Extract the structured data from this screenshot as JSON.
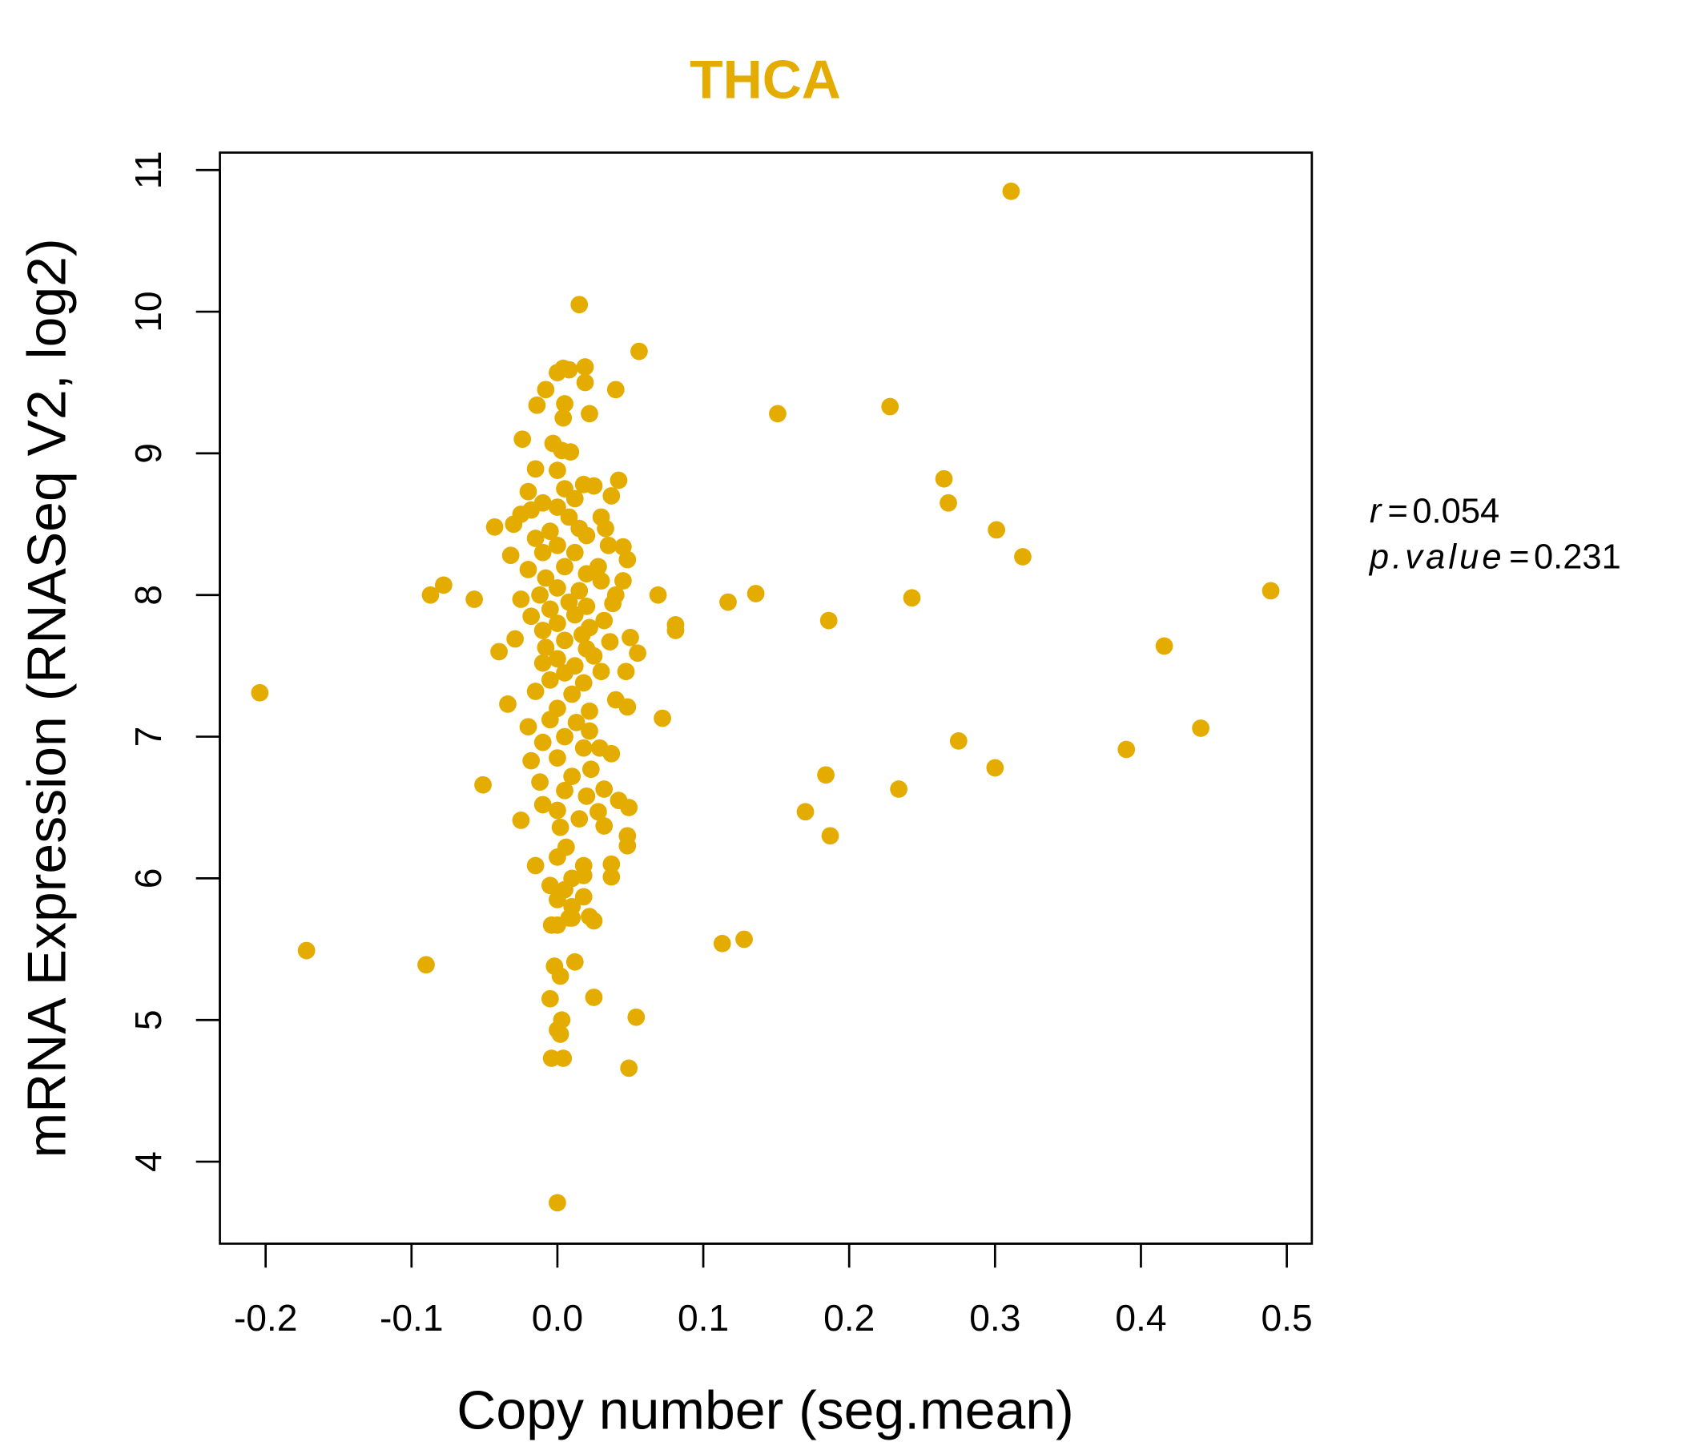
{
  "chart_data": {
    "type": "scatter",
    "title": "THCA",
    "xlabel": "Copy number (seg.mean)",
    "ylabel": "mRNA Expression (RNASeq V2, log2)",
    "xlim": [
      -0.23,
      0.52
    ],
    "ylim": [
      3.45,
      11.13
    ],
    "xticks": [
      -0.2,
      -0.1,
      0.0,
      0.1,
      0.2,
      0.3,
      0.4,
      0.5
    ],
    "xtick_labels": [
      "-0.2",
      "-0.1",
      "0.0",
      "0.1",
      "0.2",
      "0.3",
      "0.4",
      "0.5"
    ],
    "yticks": [
      4,
      5,
      6,
      7,
      8,
      9,
      10,
      11
    ],
    "ytick_labels": [
      "4",
      "5",
      "6",
      "7",
      "8",
      "9",
      "10",
      "11"
    ],
    "grid": false,
    "color": "#E5AC00",
    "annotations": {
      "r_label": "r",
      "r_value": "0.054",
      "p_label": "p.value",
      "p_value": "0.231"
    },
    "points": [
      [
        -0.204,
        7.31
      ],
      [
        -0.172,
        5.49
      ],
      [
        -0.09,
        5.39
      ],
      [
        -0.087,
        8.0
      ],
      [
        -0.078,
        8.07
      ],
      [
        -0.057,
        7.97
      ],
      [
        -0.051,
        6.66
      ],
      [
        -0.04,
        7.6
      ],
      [
        -0.034,
        7.23
      ],
      [
        -0.043,
        8.48
      ],
      [
        -0.029,
        7.69
      ],
      [
        0.015,
        10.05
      ],
      [
        0.056,
        9.72
      ],
      [
        0.069,
        8.0
      ],
      [
        0.072,
        7.13
      ],
      [
        0.081,
        7.79
      ],
      [
        0.081,
        7.75
      ],
      [
        0.113,
        5.54
      ],
      [
        0.128,
        5.57
      ],
      [
        0.117,
        7.95
      ],
      [
        0.136,
        8.01
      ],
      [
        0.151,
        9.28
      ],
      [
        0.17,
        6.47
      ],
      [
        0.184,
        6.73
      ],
      [
        0.186,
        7.82
      ],
      [
        0.187,
        6.3
      ],
      [
        0.228,
        9.33
      ],
      [
        0.234,
        6.63
      ],
      [
        0.243,
        7.98
      ],
      [
        0.265,
        8.82
      ],
      [
        0.268,
        8.65
      ],
      [
        0.275,
        6.97
      ],
      [
        0.3,
        6.78
      ],
      [
        0.301,
        8.46
      ],
      [
        0.311,
        10.85
      ],
      [
        0.319,
        8.27
      ],
      [
        0.39,
        6.91
      ],
      [
        0.416,
        7.64
      ],
      [
        0.441,
        7.06
      ],
      [
        0.489,
        8.03
      ],
      [
        0.0,
        3.71
      ],
      [
        0.049,
        4.66
      ],
      [
        0.054,
        5.02
      ],
      [
        0.025,
        5.16
      ],
      [
        -0.005,
        5.15
      ],
      [
        -0.004,
        4.73
      ],
      [
        0.004,
        4.73
      ],
      [
        0.0,
        4.93
      ],
      [
        0.003,
        5.0
      ],
      [
        0.002,
        4.9
      ],
      [
        -0.002,
        5.38
      ],
      [
        0.002,
        5.31
      ],
      [
        0.012,
        5.41
      ],
      [
        -0.004,
        5.67
      ],
      [
        0.0,
        5.67
      ],
      [
        0.025,
        5.7
      ],
      [
        0.01,
        5.72
      ],
      [
        -0.015,
        6.09
      ],
      [
        0.0,
        9.57
      ],
      [
        0.004,
        9.6
      ],
      [
        0.008,
        9.59
      ],
      [
        0.019,
        9.61
      ],
      [
        0.019,
        9.5
      ],
      [
        -0.008,
        9.45
      ],
      [
        0.04,
        9.45
      ],
      [
        -0.014,
        9.34
      ],
      [
        0.005,
        9.35
      ],
      [
        0.004,
        9.25
      ],
      [
        0.022,
        9.28
      ],
      [
        -0.024,
        9.1
      ],
      [
        -0.003,
        9.07
      ],
      [
        0.009,
        9.01
      ],
      [
        0.003,
        9.02
      ],
      [
        -0.015,
        8.89
      ],
      [
        0.0,
        8.88
      ],
      [
        0.042,
        8.81
      ],
      [
        0.018,
        8.78
      ],
      [
        0.025,
        8.77
      ],
      [
        -0.02,
        8.73
      ],
      [
        0.005,
        8.75
      ],
      [
        0.037,
        8.7
      ],
      [
        -0.01,
        8.65
      ],
      [
        0.012,
        8.68
      ],
      [
        -0.018,
        8.6
      ],
      [
        0.0,
        8.62
      ],
      [
        0.03,
        8.55
      ],
      [
        -0.025,
        8.57
      ],
      [
        0.008,
        8.55
      ],
      [
        0.033,
        8.47
      ],
      [
        -0.03,
        8.5
      ],
      [
        0.015,
        8.47
      ],
      [
        -0.005,
        8.45
      ],
      [
        0.02,
        8.42
      ],
      [
        -0.015,
        8.4
      ],
      [
        0.045,
        8.34
      ],
      [
        0.035,
        8.35
      ],
      [
        0.0,
        8.35
      ],
      [
        -0.032,
        8.28
      ],
      [
        -0.01,
        8.3
      ],
      [
        0.012,
        8.3
      ],
      [
        0.048,
        8.25
      ],
      [
        0.028,
        8.2
      ],
      [
        -0.02,
        8.18
      ],
      [
        0.005,
        8.2
      ],
      [
        0.02,
        8.15
      ],
      [
        -0.008,
        8.12
      ],
      [
        0.03,
        8.1
      ],
      [
        0.045,
        8.1
      ],
      [
        0.0,
        8.05
      ],
      [
        0.015,
        8.03
      ],
      [
        -0.012,
        8.0
      ],
      [
        0.04,
        8.0
      ],
      [
        -0.025,
        7.97
      ],
      [
        0.008,
        7.95
      ],
      [
        0.038,
        7.94
      ],
      [
        0.02,
        7.92
      ],
      [
        -0.005,
        7.9
      ],
      [
        -0.018,
        7.85
      ],
      [
        0.012,
        7.86
      ],
      [
        0.032,
        7.82
      ],
      [
        0.0,
        7.8
      ],
      [
        0.022,
        7.77
      ],
      [
        -0.01,
        7.75
      ],
      [
        0.017,
        7.72
      ],
      [
        0.05,
        7.7
      ],
      [
        0.036,
        7.67
      ],
      [
        0.005,
        7.68
      ],
      [
        -0.008,
        7.63
      ],
      [
        0.02,
        7.62
      ],
      [
        0.055,
        7.59
      ],
      [
        0.025,
        7.57
      ],
      [
        0.0,
        7.55
      ],
      [
        -0.01,
        7.52
      ],
      [
        0.012,
        7.5
      ],
      [
        0.03,
        7.46
      ],
      [
        0.047,
        7.46
      ],
      [
        0.005,
        7.45
      ],
      [
        -0.005,
        7.4
      ],
      [
        0.018,
        7.38
      ],
      [
        -0.015,
        7.32
      ],
      [
        0.01,
        7.3
      ],
      [
        0.04,
        7.26
      ],
      [
        0.048,
        7.21
      ],
      [
        0.0,
        7.2
      ],
      [
        0.022,
        7.18
      ],
      [
        -0.005,
        7.12
      ],
      [
        0.013,
        7.1
      ],
      [
        -0.02,
        7.07
      ],
      [
        0.022,
        7.04
      ],
      [
        0.005,
        7.0
      ],
      [
        -0.01,
        6.96
      ],
      [
        0.018,
        6.92
      ],
      [
        0.029,
        6.92
      ],
      [
        0.037,
        6.88
      ],
      [
        -0.018,
        6.83
      ],
      [
        0.0,
        6.85
      ],
      [
        0.023,
        6.77
      ],
      [
        0.01,
        6.72
      ],
      [
        -0.012,
        6.68
      ],
      [
        0.032,
        6.63
      ],
      [
        0.005,
        6.62
      ],
      [
        0.02,
        6.58
      ],
      [
        0.042,
        6.55
      ],
      [
        -0.01,
        6.52
      ],
      [
        0.049,
        6.5
      ],
      [
        0.0,
        6.48
      ],
      [
        0.028,
        6.47
      ],
      [
        -0.025,
        6.41
      ],
      [
        0.015,
        6.42
      ],
      [
        0.032,
        6.37
      ],
      [
        0.002,
        6.36
      ],
      [
        0.048,
        6.3
      ],
      [
        0.048,
        6.23
      ],
      [
        0.006,
        6.22
      ],
      [
        0.0,
        6.15
      ],
      [
        0.037,
        6.1
      ],
      [
        0.018,
        6.09
      ],
      [
        0.037,
        6.01
      ],
      [
        0.01,
        6.0
      ],
      [
        0.018,
        6.02
      ],
      [
        -0.005,
        5.95
      ],
      [
        0.005,
        5.92
      ],
      [
        0.018,
        5.87
      ],
      [
        0.0,
        5.85
      ],
      [
        0.01,
        5.8
      ],
      [
        0.022,
        5.73
      ],
      [
        0.008,
        5.72
      ]
    ]
  }
}
